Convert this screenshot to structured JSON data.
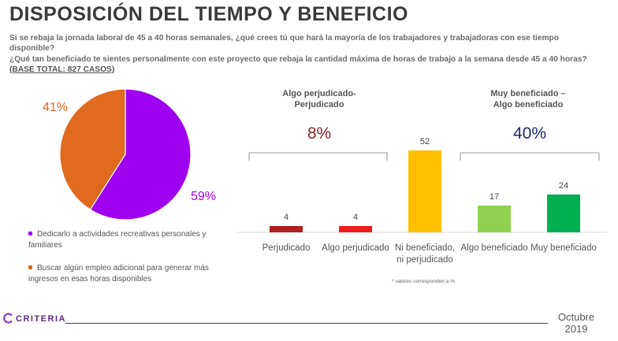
{
  "title": "DISPOSICIÓN DEL TIEMPO Y BENEFICIO",
  "question1": "Si se rebaja la jornada laboral de 45 a 40 horas semanales, ¿qué crees tú que hará la mayoría de los trabajadores y trabajadoras con ese tiempo disponible?",
  "question2": "¿Qué tan beneficiado te sientes personalmente con este proyecto que rebaja la cantidad máxima de horas de trabajo a la semana desde 45 a 40 horas?",
  "base": "(BASE TOTAL: 827 CASOS)",
  "groups": {
    "left": {
      "line1": "Algo perjudicado-",
      "line2": "Perjudicado",
      "pct": "8%"
    },
    "right": {
      "line1": "Muy beneficiado –",
      "line2": "Algo beneficiado",
      "pct": "40%"
    }
  },
  "note": "* valores corresponden a %",
  "footer": {
    "brand": "CRITERIA",
    "date_line1": "Octubre",
    "date_line2": "2019"
  },
  "colors": {
    "purple": "#A000F0",
    "orange": "#E06A1E",
    "dark_red": "#8B2323",
    "navy": "#1F2A6B"
  },
  "chart_data": [
    {
      "type": "pie",
      "slices": [
        {
          "label": "Dedicarlo a actividades recreativas personales y familiares",
          "display": "59%",
          "value": 59,
          "color": "#A000F0"
        },
        {
          "label": "Buscar algún empleo adicional para generar más ingresos en esas horas disponibles",
          "display": "41%",
          "value": 41,
          "color": "#E06A1E"
        }
      ]
    },
    {
      "type": "bar",
      "categories": [
        "Perjudicado",
        "Algo perjudicado",
        "Ni beneficiado, ni perjudicado",
        "Algo beneficiado",
        "Muy beneficiado"
      ],
      "category_lines": [
        [
          "Perjudicado"
        ],
        [
          "Algo perjudicado"
        ],
        [
          "Ni beneficiado,",
          "ni perjudicado"
        ],
        [
          "Algo beneficiado"
        ],
        [
          "Muy beneficiado"
        ]
      ],
      "values": [
        4,
        4,
        52,
        17,
        24
      ],
      "colors": [
        "#B01E1E",
        "#EE1C1C",
        "#FFC000",
        "#92D050",
        "#00B050"
      ],
      "ylim": [
        0,
        60
      ]
    }
  ]
}
